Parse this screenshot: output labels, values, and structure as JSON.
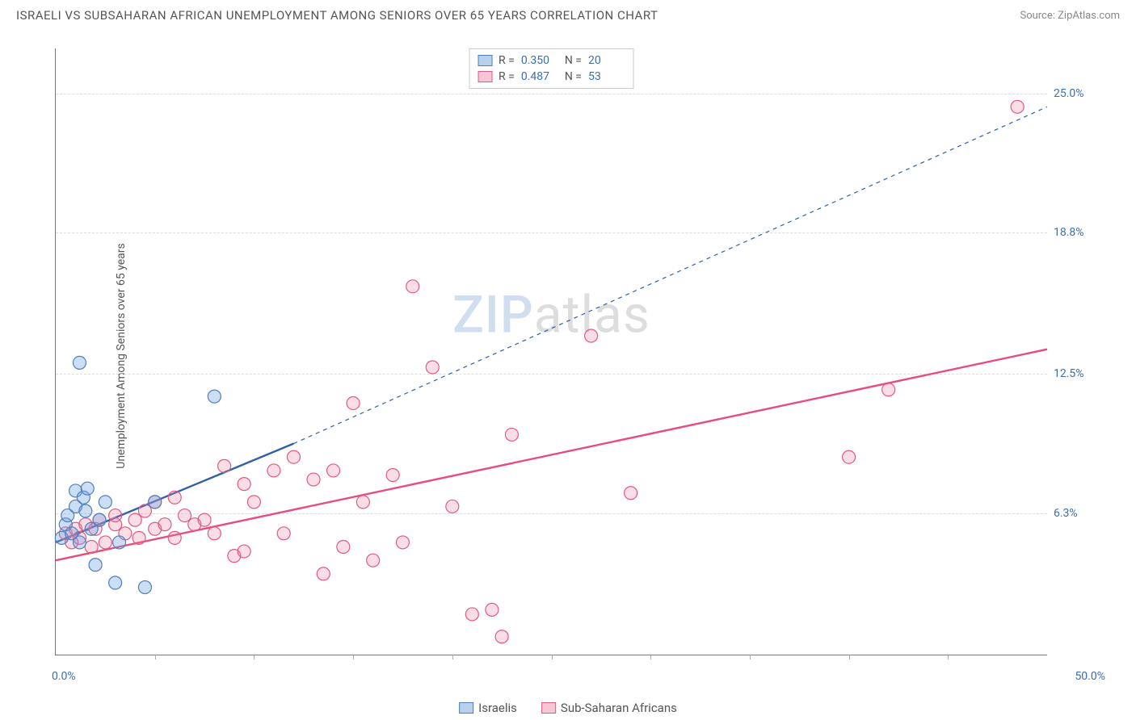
{
  "header": {
    "title": "ISRAELI VS SUBSAHARAN AFRICAN UNEMPLOYMENT AMONG SENIORS OVER 65 YEARS CORRELATION CHART",
    "source": "Source: ZipAtlas.com"
  },
  "chart": {
    "type": "scatter",
    "ylabel": "Unemployment Among Seniors over 65 years",
    "xlim": [
      0,
      50
    ],
    "ylim": [
      0,
      27
    ],
    "yticks": [
      {
        "v": 6.3,
        "label": "6.3%"
      },
      {
        "v": 12.5,
        "label": "12.5%"
      },
      {
        "v": 18.8,
        "label": "18.8%"
      },
      {
        "v": 25.0,
        "label": "25.0%"
      }
    ],
    "xticks_minor": [
      5,
      10,
      15,
      20,
      25,
      30,
      35,
      40,
      45
    ],
    "x_min_label": "0.0%",
    "x_max_label": "50.0%",
    "background_color": "#ffffff",
    "grid_color": "#dddddd",
    "axis_color": "#777777",
    "marker_radius": 8,
    "marker_stroke_width": 1.2,
    "series": [
      {
        "key": "israelis",
        "label": "Israelis",
        "color_fill": "rgba(110,160,220,0.35)",
        "color_stroke": "#4e7fc1",
        "legend_swatch_fill": "#b9d0ec",
        "legend_swatch_stroke": "#4e7fc1",
        "R": "0.350",
        "N": "20",
        "trend": {
          "solid": {
            "x1": 0,
            "y1": 5.0,
            "x2": 12,
            "y2": 9.4
          },
          "dashed": {
            "x1": 12,
            "y1": 9.4,
            "x2": 50,
            "y2": 24.4
          },
          "stroke": "#2f60a8",
          "width_solid": 2.4,
          "width_dashed": 1.2,
          "dash": "5,5"
        },
        "points": [
          [
            0.3,
            5.2
          ],
          [
            0.5,
            5.8
          ],
          [
            0.6,
            6.2
          ],
          [
            0.8,
            5.4
          ],
          [
            1.0,
            6.6
          ],
          [
            1.0,
            7.3
          ],
          [
            1.2,
            5.0
          ],
          [
            1.4,
            7.0
          ],
          [
            1.5,
            6.4
          ],
          [
            1.6,
            7.4
          ],
          [
            1.8,
            5.6
          ],
          [
            2.0,
            4.0
          ],
          [
            2.2,
            6.0
          ],
          [
            2.5,
            6.8
          ],
          [
            3.0,
            3.2
          ],
          [
            3.2,
            5.0
          ],
          [
            4.5,
            3.0
          ],
          [
            1.2,
            13.0
          ],
          [
            8.0,
            11.5
          ],
          [
            5.0,
            6.8
          ]
        ]
      },
      {
        "key": "subsaharan",
        "label": "Sub-Saharan Africans",
        "color_fill": "rgba(235,120,150,0.25)",
        "color_stroke": "#e05a84",
        "legend_swatch_fill": "#f6c6d4",
        "legend_swatch_stroke": "#e05a84",
        "R": "0.487",
        "N": "53",
        "trend": {
          "solid": {
            "x1": 0,
            "y1": 4.2,
            "x2": 50,
            "y2": 13.6
          },
          "stroke": "#e84c7a",
          "width_solid": 2.4
        },
        "points": [
          [
            0.5,
            5.4
          ],
          [
            0.8,
            5.0
          ],
          [
            1.0,
            5.6
          ],
          [
            1.2,
            5.2
          ],
          [
            1.5,
            5.8
          ],
          [
            1.8,
            4.8
          ],
          [
            2.0,
            5.6
          ],
          [
            2.2,
            6.0
          ],
          [
            2.5,
            5.0
          ],
          [
            3.0,
            5.8
          ],
          [
            3.0,
            6.2
          ],
          [
            3.5,
            5.4
          ],
          [
            4.0,
            6.0
          ],
          [
            4.2,
            5.2
          ],
          [
            4.5,
            6.4
          ],
          [
            5.0,
            5.6
          ],
          [
            5.0,
            6.8
          ],
          [
            5.5,
            5.8
          ],
          [
            6.0,
            5.2
          ],
          [
            6.0,
            7.0
          ],
          [
            6.5,
            6.2
          ],
          [
            7.0,
            5.8
          ],
          [
            7.5,
            6.0
          ],
          [
            8.0,
            5.4
          ],
          [
            8.5,
            8.4
          ],
          [
            9.0,
            4.4
          ],
          [
            9.5,
            4.6
          ],
          [
            9.5,
            7.6
          ],
          [
            10.0,
            6.8
          ],
          [
            11.0,
            8.2
          ],
          [
            11.5,
            5.4
          ],
          [
            12.0,
            8.8
          ],
          [
            13.0,
            7.8
          ],
          [
            13.5,
            3.6
          ],
          [
            14.0,
            8.2
          ],
          [
            14.5,
            4.8
          ],
          [
            15.0,
            11.2
          ],
          [
            15.5,
            6.8
          ],
          [
            16.0,
            4.2
          ],
          [
            17.0,
            8.0
          ],
          [
            17.5,
            5.0
          ],
          [
            18.0,
            16.4
          ],
          [
            19.0,
            12.8
          ],
          [
            20.0,
            6.6
          ],
          [
            21.0,
            1.8
          ],
          [
            22.0,
            2.0
          ],
          [
            22.5,
            0.8
          ],
          [
            23.0,
            9.8
          ],
          [
            27.0,
            14.2
          ],
          [
            29.0,
            7.2
          ],
          [
            40.0,
            8.8
          ],
          [
            42.0,
            11.8
          ],
          [
            48.5,
            24.4
          ]
        ]
      }
    ],
    "watermark": {
      "part1": "ZIP",
      "part2": "atlas"
    }
  },
  "legend_bottom": [
    {
      "key": "israelis"
    },
    {
      "key": "subsaharan"
    }
  ]
}
